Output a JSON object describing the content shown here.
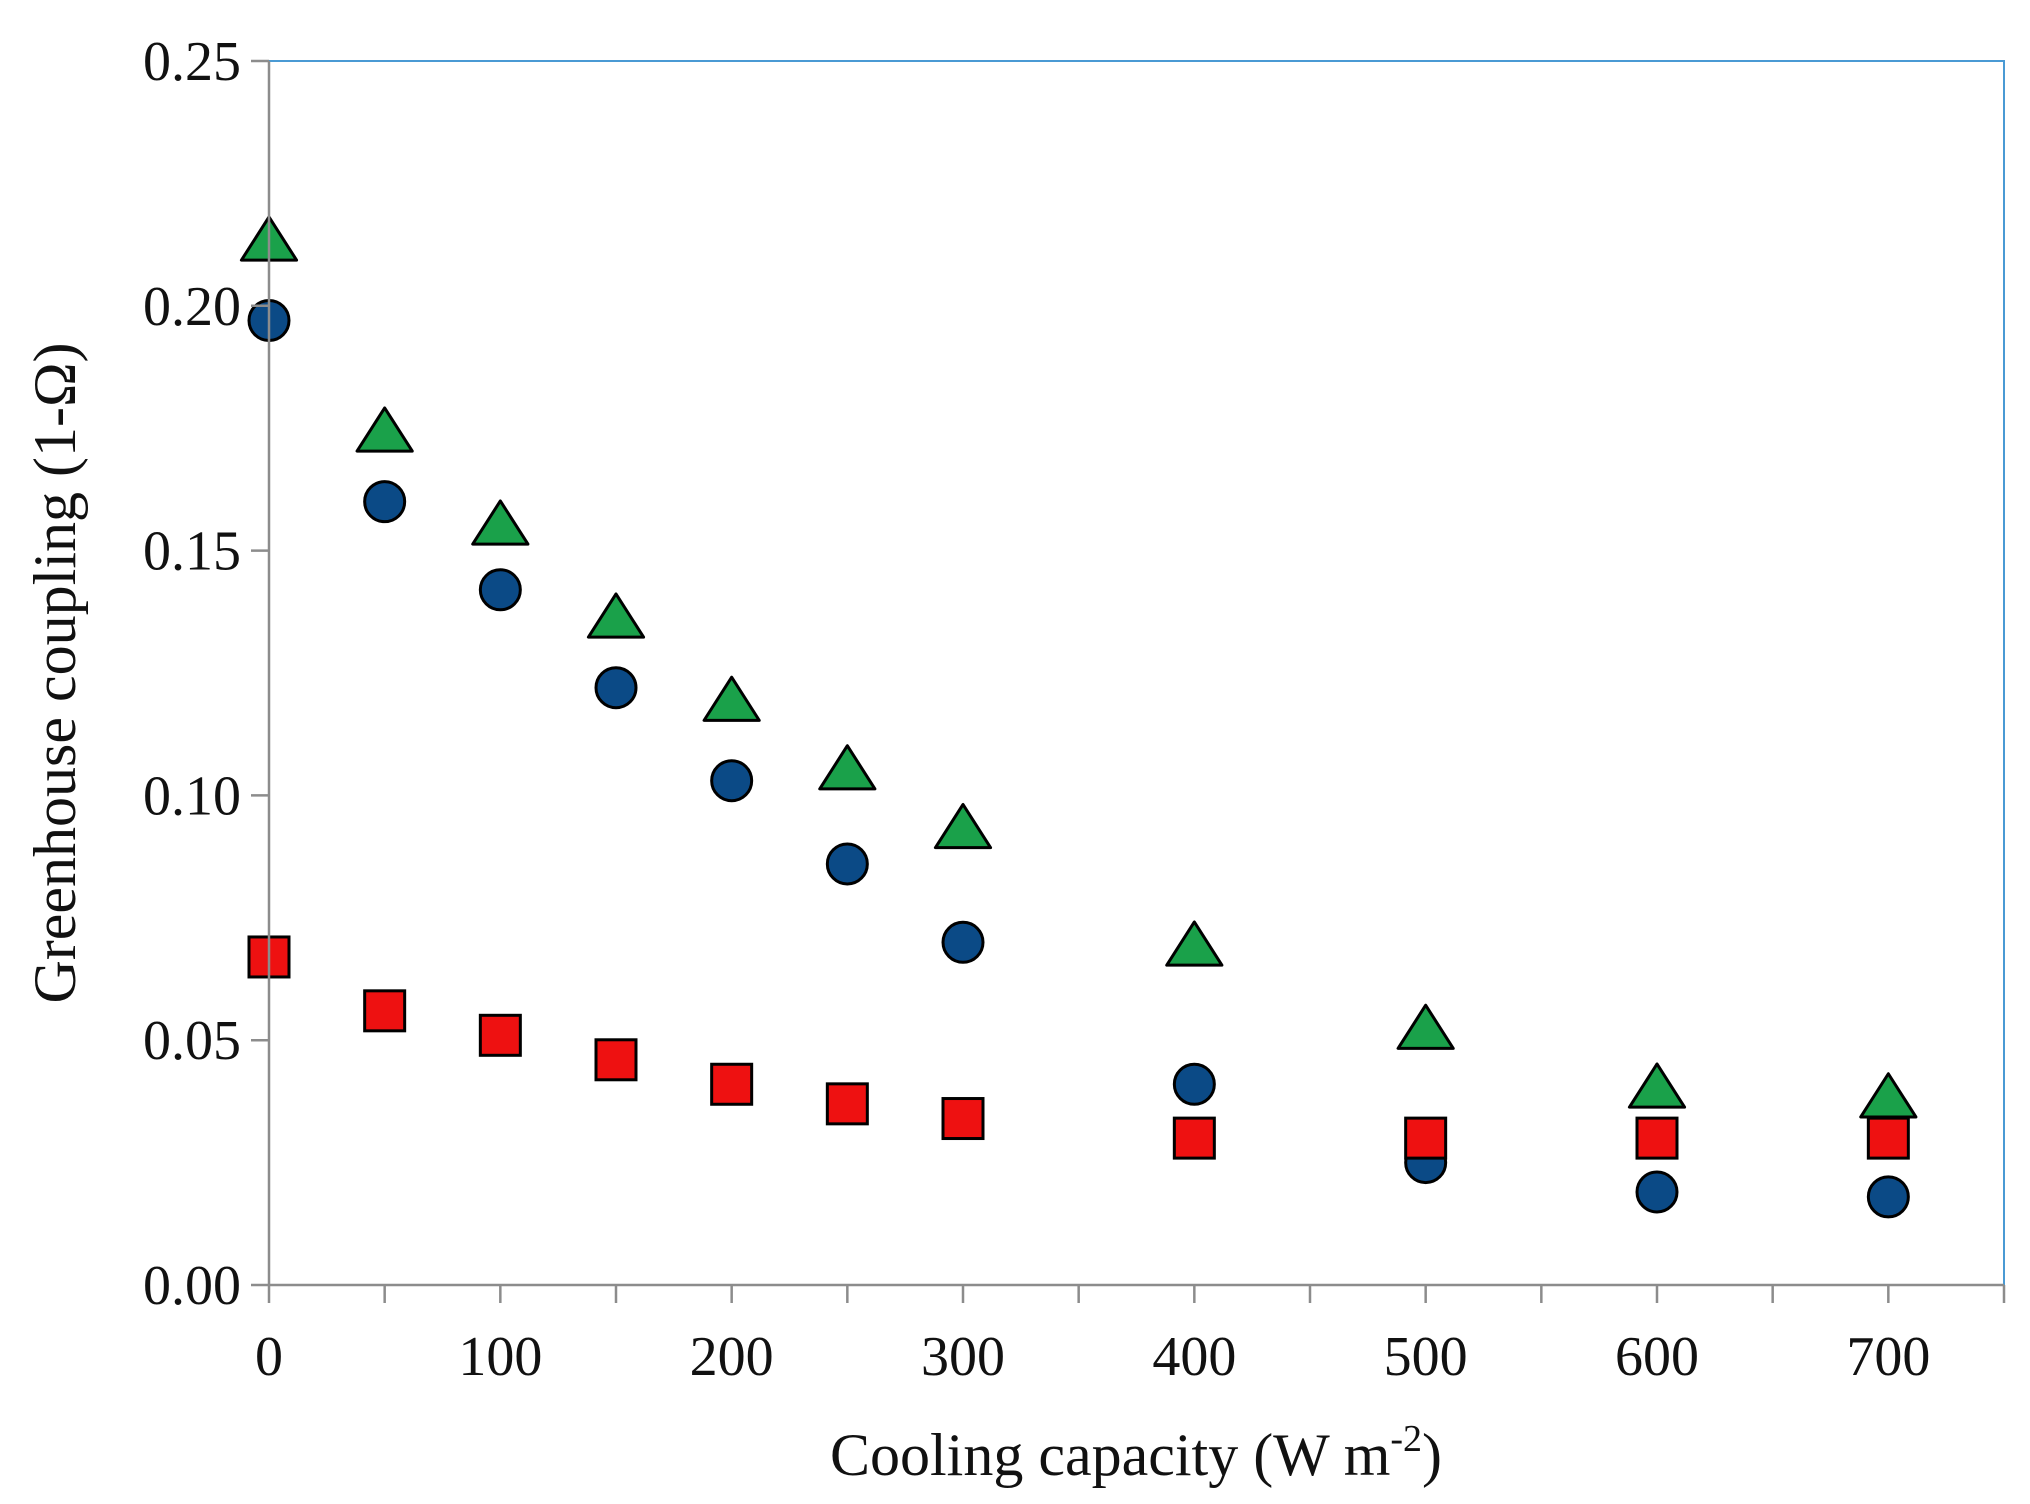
{
  "chart_data": {
    "type": "scatter",
    "xlabel": {
      "main": "Cooling capacity (W m",
      "sup": "-2",
      "close": ")"
    },
    "ylabel": "Greenhouse coupling (1-Ω)",
    "xlim": [
      0,
      750
    ],
    "ylim": [
      0,
      0.25
    ],
    "x_ticks": [
      "0",
      "100",
      "200",
      "300",
      "400",
      "500",
      "600",
      "700"
    ],
    "x_tick_values": [
      0,
      100,
      200,
      300,
      400,
      500,
      600,
      700
    ],
    "x_minor_ticks": [
      50,
      150,
      250,
      350,
      450,
      550,
      650,
      750
    ],
    "y_ticks": [
      "0.00",
      "0.05",
      "0.10",
      "0.15",
      "0.20",
      "0.25"
    ],
    "y_tick_values": [
      0,
      0.05,
      0.1,
      0.15,
      0.2,
      0.25
    ],
    "grid": false,
    "legend": "none",
    "colors": {
      "triangle": "#1aa14a",
      "circle": "#0b4a86",
      "square": "#ee1111",
      "marker_edge": "#000000",
      "plot_border": "#4a9ad4",
      "axis": "#8c8c8c"
    },
    "series": [
      {
        "marker": "triangle",
        "x": [
          0,
          50,
          100,
          150,
          200,
          250,
          300,
          400,
          500,
          600,
          700
        ],
        "y": [
          0.213,
          0.174,
          0.155,
          0.136,
          0.119,
          0.105,
          0.093,
          0.069,
          0.052,
          0.04,
          0.038
        ]
      },
      {
        "marker": "circle",
        "x": [
          0,
          50,
          100,
          150,
          200,
          250,
          300,
          400,
          500,
          600,
          700
        ],
        "y": [
          0.197,
          0.16,
          0.142,
          0.122,
          0.103,
          0.086,
          0.07,
          0.041,
          0.025,
          0.019,
          0.018
        ]
      },
      {
        "marker": "square",
        "x": [
          0,
          50,
          100,
          150,
          200,
          250,
          300,
          400,
          500,
          600,
          700
        ],
        "y": [
          0.067,
          0.056,
          0.051,
          0.046,
          0.041,
          0.037,
          0.034,
          0.03,
          0.03,
          0.03,
          0.03
        ]
      }
    ]
  }
}
